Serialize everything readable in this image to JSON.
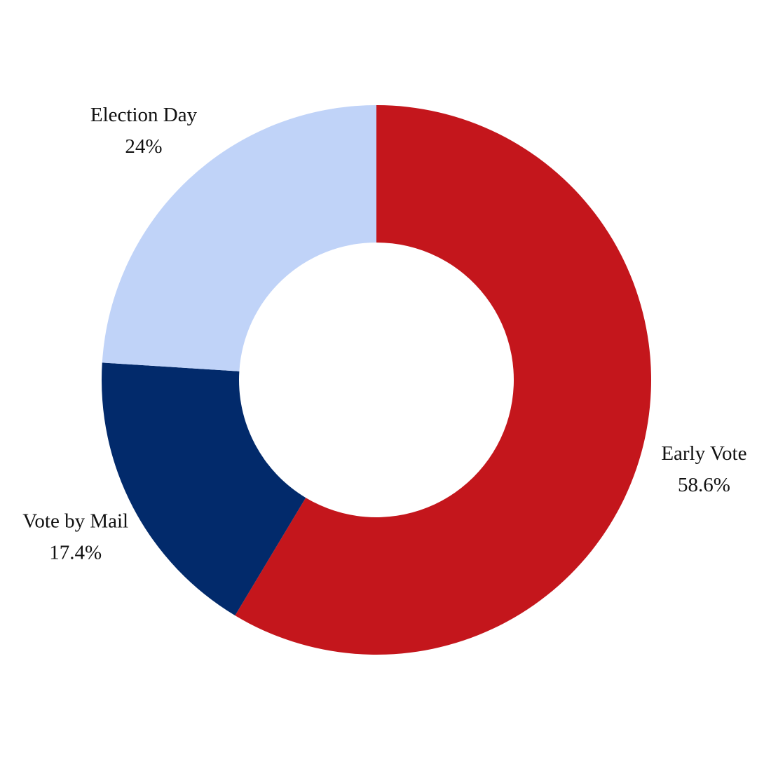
{
  "chart_data": {
    "type": "donut",
    "categories": [
      "Early Vote",
      "Vote by Mail",
      "Election Day"
    ],
    "values": [
      58.6,
      17.4,
      24
    ],
    "value_labels": [
      "58.6%",
      "17.4%",
      "24%"
    ],
    "colors": [
      "#c4161c",
      "#022a6b",
      "#c0d3f8"
    ]
  }
}
